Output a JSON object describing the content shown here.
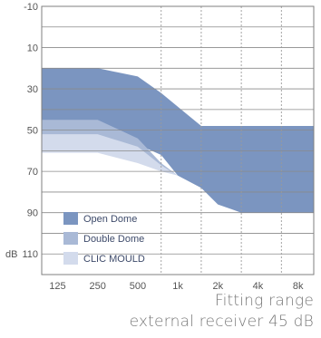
{
  "chart_data": {
    "type": "area",
    "title": "",
    "xlabel": "",
    "ylabel": "dB",
    "x_ticks": [
      "125",
      "250",
      "500",
      "1k",
      "2k",
      "4k",
      "8k"
    ],
    "y_ticks": [
      "-10",
      "10",
      "30",
      "50",
      "70",
      "90",
      "110"
    ],
    "ylim": [
      -10,
      120
    ],
    "y_inverted": true,
    "x_scale": "log",
    "xlim_hz": [
      95,
      10500
    ],
    "grid": "horizontal solid, vertical dotted at 750Hz, 1.5k, 3k, 6k",
    "legend_position": "bottom-left",
    "series": [
      {
        "name": "Open Dome",
        "color": "#7b95c0",
        "x": [
          95,
          250,
          500,
          750,
          1500,
          10500
        ],
        "top": [
          20,
          20,
          24,
          32,
          48,
          48
        ],
        "bottom": [
          49,
          49,
          57,
          62,
          72,
          78,
          86,
          90,
          90
        ],
        "bottom_x": [
          95,
          250,
          500,
          750,
          1000,
          1500,
          2000,
          3000,
          10500
        ]
      },
      {
        "name": "Double Dome",
        "color": "#a9b9d6",
        "x": [
          95,
          250,
          500,
          750,
          1000
        ],
        "top": [
          45,
          45,
          54,
          66,
          72
        ],
        "bottom": [
          56,
          56,
          63,
          68,
          72
        ]
      },
      {
        "name": "CLIC MOULD",
        "color": "#d3dbec",
        "x": [
          95,
          250,
          500,
          750,
          1000
        ],
        "top": [
          52,
          52,
          58,
          67,
          72
        ],
        "bottom": [
          61,
          61,
          66,
          70,
          72
        ]
      }
    ]
  },
  "caption": {
    "line1": "Fitting range",
    "line2": "external receiver 45 dB"
  },
  "legend_order": [
    "CLIC MOULD",
    "Double Dome",
    "Open Dome"
  ]
}
